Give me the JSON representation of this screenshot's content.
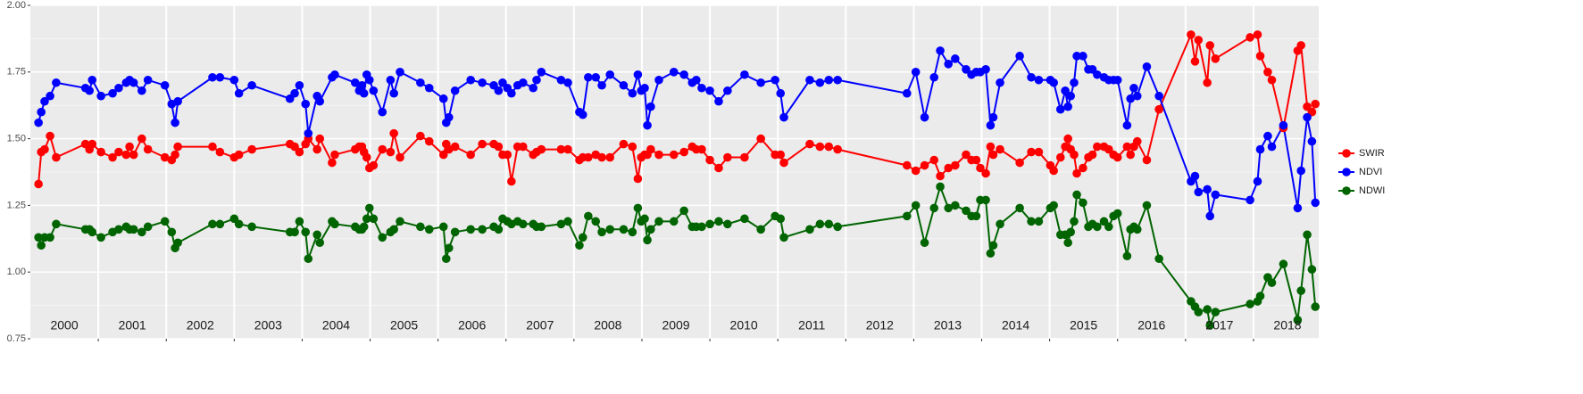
{
  "chart_data": {
    "type": "line",
    "x": [
      2000.12,
      2000.16,
      2000.21,
      2000.29,
      2000.38,
      2000.81,
      2000.87,
      2000.91,
      2001.04,
      2001.21,
      2001.3,
      2001.41,
      2001.46,
      2001.52,
      2001.64,
      2001.73,
      2001.98,
      2002.08,
      2002.13,
      2002.17,
      2002.68,
      2002.79,
      2003.0,
      2003.07,
      2003.26,
      2003.82,
      2003.89,
      2003.96,
      2004.05,
      2004.09,
      2004.22,
      2004.26,
      2004.44,
      2004.48,
      2004.78,
      2004.84,
      2004.88,
      2004.91,
      2004.95,
      2004.99,
      2005.05,
      2005.18,
      2005.3,
      2005.35,
      2005.44,
      2005.74,
      2005.87,
      2006.08,
      2006.12,
      2006.16,
      2006.25,
      2006.48,
      2006.65,
      2006.82,
      2006.89,
      2006.95,
      2007.02,
      2007.08,
      2007.17,
      2007.25,
      2007.4,
      2007.45,
      2007.52,
      2007.81,
      2007.91,
      2008.08,
      2008.13,
      2008.21,
      2008.32,
      2008.41,
      2008.53,
      2008.73,
      2008.86,
      2008.94,
      2008.99,
      2009.04,
      2009.08,
      2009.13,
      2009.25,
      2009.47,
      2009.62,
      2009.74,
      2009.8,
      2009.88,
      2010.0,
      2010.13,
      2010.26,
      2010.51,
      2010.75,
      2010.96,
      2011.04,
      2011.09,
      2011.47,
      2011.62,
      2011.75,
      2011.88,
      2012.9,
      2013.03,
      2013.16,
      2013.3,
      2013.39,
      2013.51,
      2013.61,
      2013.77,
      2013.85,
      2013.92,
      2013.98,
      2014.06,
      2014.13,
      2014.17,
      2014.27,
      2014.56,
      2014.73,
      2014.84,
      2015.01,
      2015.06,
      2015.16,
      2015.23,
      2015.27,
      2015.31,
      2015.36,
      2015.4,
      2015.49,
      2015.57,
      2015.63,
      2015.7,
      2015.8,
      2015.87,
      2015.94,
      2016.0,
      2016.14,
      2016.19,
      2016.24,
      2016.29,
      2016.43,
      2016.61,
      2017.08,
      2017.14,
      2017.19,
      2017.32,
      2017.36,
      2017.44,
      2017.95,
      2018.06,
      2018.1,
      2018.21,
      2018.27,
      2018.44,
      2018.65,
      2018.7,
      2018.79,
      2018.86,
      2018.91
    ],
    "series": [
      {
        "name": "SWIR",
        "color": "#ff0000",
        "values": [
          1.33,
          1.45,
          1.46,
          1.51,
          1.43,
          1.48,
          1.46,
          1.48,
          1.45,
          1.43,
          1.45,
          1.44,
          1.47,
          1.44,
          1.5,
          1.46,
          1.43,
          1.42,
          1.44,
          1.47,
          1.47,
          1.45,
          1.43,
          1.44,
          1.46,
          1.48,
          1.47,
          1.45,
          1.48,
          1.5,
          1.46,
          1.5,
          1.41,
          1.44,
          1.46,
          1.47,
          1.47,
          1.45,
          1.43,
          1.39,
          1.4,
          1.46,
          1.45,
          1.52,
          1.43,
          1.51,
          1.49,
          1.44,
          1.48,
          1.46,
          1.47,
          1.44,
          1.48,
          1.48,
          1.47,
          1.44,
          1.44,
          1.34,
          1.47,
          1.47,
          1.44,
          1.45,
          1.46,
          1.46,
          1.46,
          1.42,
          1.43,
          1.43,
          1.44,
          1.43,
          1.43,
          1.48,
          1.47,
          1.35,
          1.43,
          1.44,
          1.44,
          1.46,
          1.44,
          1.44,
          1.45,
          1.47,
          1.46,
          1.46,
          1.42,
          1.39,
          1.43,
          1.43,
          1.5,
          1.44,
          1.44,
          1.41,
          1.48,
          1.47,
          1.47,
          1.46,
          1.4,
          1.38,
          1.4,
          1.42,
          1.36,
          1.39,
          1.4,
          1.44,
          1.42,
          1.42,
          1.39,
          1.37,
          1.47,
          1.44,
          1.46,
          1.41,
          1.45,
          1.45,
          1.4,
          1.38,
          1.43,
          1.47,
          1.5,
          1.46,
          1.44,
          1.37,
          1.39,
          1.43,
          1.44,
          1.47,
          1.47,
          1.46,
          1.44,
          1.43,
          1.47,
          1.44,
          1.47,
          1.49,
          1.42,
          1.61,
          1.89,
          1.79,
          1.87,
          1.71,
          1.85,
          1.8,
          1.88,
          1.89,
          1.81,
          1.75,
          1.72,
          1.54,
          1.83,
          1.85,
          1.62,
          1.6,
          1.63
        ]
      },
      {
        "name": "NDVI",
        "color": "#0000ff",
        "values": [
          1.56,
          1.6,
          1.64,
          1.66,
          1.71,
          1.69,
          1.68,
          1.72,
          1.66,
          1.67,
          1.69,
          1.71,
          1.72,
          1.71,
          1.68,
          1.72,
          1.7,
          1.63,
          1.56,
          1.64,
          1.73,
          1.73,
          1.72,
          1.67,
          1.7,
          1.65,
          1.67,
          1.7,
          1.63,
          1.52,
          1.66,
          1.64,
          1.73,
          1.74,
          1.71,
          1.68,
          1.7,
          1.67,
          1.74,
          1.72,
          1.68,
          1.6,
          1.72,
          1.67,
          1.75,
          1.71,
          1.69,
          1.65,
          1.56,
          1.58,
          1.68,
          1.72,
          1.71,
          1.7,
          1.68,
          1.71,
          1.69,
          1.67,
          1.7,
          1.71,
          1.69,
          1.72,
          1.75,
          1.72,
          1.71,
          1.6,
          1.59,
          1.73,
          1.73,
          1.7,
          1.74,
          1.7,
          1.67,
          1.74,
          1.68,
          1.69,
          1.55,
          1.62,
          1.72,
          1.75,
          1.74,
          1.71,
          1.72,
          1.69,
          1.68,
          1.64,
          1.68,
          1.74,
          1.71,
          1.72,
          1.67,
          1.58,
          1.72,
          1.71,
          1.72,
          1.72,
          1.67,
          1.75,
          1.58,
          1.73,
          1.83,
          1.78,
          1.8,
          1.76,
          1.74,
          1.75,
          1.75,
          1.76,
          1.55,
          1.58,
          1.71,
          1.81,
          1.73,
          1.72,
          1.72,
          1.71,
          1.61,
          1.68,
          1.62,
          1.66,
          1.71,
          1.81,
          1.81,
          1.76,
          1.76,
          1.74,
          1.73,
          1.72,
          1.72,
          1.72,
          1.55,
          1.65,
          1.69,
          1.66,
          1.77,
          1.66,
          1.34,
          1.36,
          1.3,
          1.31,
          1.21,
          1.29,
          1.27,
          1.34,
          1.46,
          1.51,
          1.47,
          1.55,
          1.24,
          1.38,
          1.58,
          1.49,
          1.26
        ]
      },
      {
        "name": "NDWI",
        "color": "#006400",
        "values": [
          1.13,
          1.1,
          1.13,
          1.13,
          1.18,
          1.16,
          1.16,
          1.15,
          1.13,
          1.15,
          1.16,
          1.17,
          1.16,
          1.16,
          1.15,
          1.17,
          1.19,
          1.15,
          1.09,
          1.11,
          1.18,
          1.18,
          1.2,
          1.18,
          1.17,
          1.15,
          1.15,
          1.19,
          1.15,
          1.05,
          1.14,
          1.11,
          1.19,
          1.18,
          1.17,
          1.16,
          1.16,
          1.17,
          1.2,
          1.24,
          1.2,
          1.13,
          1.15,
          1.16,
          1.19,
          1.17,
          1.16,
          1.17,
          1.05,
          1.09,
          1.15,
          1.16,
          1.16,
          1.17,
          1.16,
          1.2,
          1.19,
          1.18,
          1.19,
          1.18,
          1.18,
          1.17,
          1.17,
          1.18,
          1.19,
          1.1,
          1.13,
          1.21,
          1.19,
          1.15,
          1.16,
          1.16,
          1.15,
          1.24,
          1.19,
          1.2,
          1.12,
          1.16,
          1.19,
          1.19,
          1.23,
          1.17,
          1.17,
          1.17,
          1.18,
          1.19,
          1.18,
          1.2,
          1.16,
          1.21,
          1.2,
          1.13,
          1.16,
          1.18,
          1.18,
          1.17,
          1.21,
          1.25,
          1.11,
          1.24,
          1.32,
          1.24,
          1.25,
          1.23,
          1.21,
          1.21,
          1.27,
          1.27,
          1.07,
          1.1,
          1.18,
          1.24,
          1.19,
          1.19,
          1.24,
          1.25,
          1.14,
          1.14,
          1.11,
          1.15,
          1.19,
          1.29,
          1.26,
          1.17,
          1.18,
          1.17,
          1.19,
          1.17,
          1.21,
          1.22,
          1.06,
          1.16,
          1.17,
          1.16,
          1.25,
          1.05,
          0.89,
          0.87,
          0.85,
          0.86,
          0.8,
          0.85,
          0.88,
          0.89,
          0.91,
          0.98,
          0.96,
          1.03,
          0.82,
          0.93,
          1.14,
          1.01,
          0.87
        ]
      }
    ],
    "xlim": [
      2000,
      2018.96
    ],
    "xticks": [
      {
        "value": 2000.5,
        "label": "2000"
      },
      {
        "value": 2001.5,
        "label": "2001"
      },
      {
        "value": 2002.5,
        "label": "2002"
      },
      {
        "value": 2003.5,
        "label": "2003"
      },
      {
        "value": 2004.5,
        "label": "2004"
      },
      {
        "value": 2005.5,
        "label": "2005"
      },
      {
        "value": 2006.5,
        "label": "2006"
      },
      {
        "value": 2007.5,
        "label": "2007"
      },
      {
        "value": 2008.5,
        "label": "2008"
      },
      {
        "value": 2009.5,
        "label": "2009"
      },
      {
        "value": 2010.5,
        "label": "2010"
      },
      {
        "value": 2011.5,
        "label": "2011"
      },
      {
        "value": 2012.5,
        "label": "2012"
      },
      {
        "value": 2013.5,
        "label": "2013"
      },
      {
        "value": 2014.5,
        "label": "2014"
      },
      {
        "value": 2015.5,
        "label": "2015"
      },
      {
        "value": 2016.5,
        "label": "2016"
      },
      {
        "value": 2017.5,
        "label": "2017"
      },
      {
        "value": 2018.5,
        "label": "2018"
      }
    ],
    "ylim": [
      0.75,
      2.0
    ],
    "yticks": [
      0.75,
      {
        "value": 1.0,
        "label": "1.00"
      },
      1.25,
      {
        "value": 1.5,
        "label": "1.50"
      },
      1.75,
      {
        "value": 2.0,
        "label": "2.00"
      }
    ],
    "grid": true,
    "legend": "right"
  }
}
